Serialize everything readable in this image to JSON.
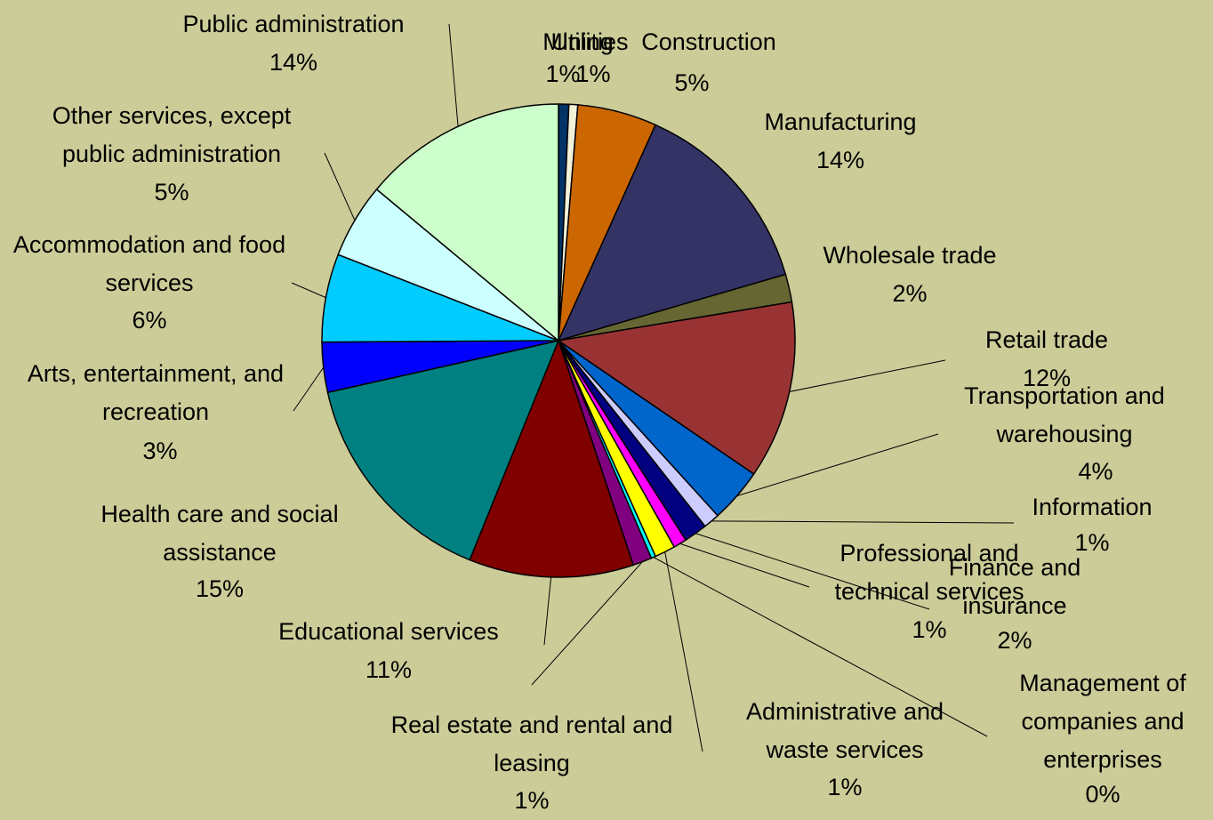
{
  "chart_data": {
    "type": "pie",
    "categories": [
      "Mining",
      "Utilities",
      "Construction",
      "Manufacturing",
      "Wholesale trade",
      "Retail trade",
      "Transportation and warehousing",
      "Information",
      "Finance and insurance",
      "Professional and technical services",
      "Administrative and waste services",
      "Management of companies and enterprises",
      "Real estate and rental and leasing",
      "Educational services",
      "Health care and social assistance",
      "Arts, entertainment, and recreation",
      "Accommodation and food services",
      "Other services, except public administration",
      "Public administration"
    ],
    "values": [
      0.7,
      0.6,
      5.4,
      13.7,
      1.9,
      12.1,
      3.7,
      1.1,
      1.6,
      0.9,
      1.4,
      0.3,
      1.3,
      11.2,
      15.3,
      3.4,
      6.0,
      5.1,
      13.9
    ],
    "value_labels": [
      "1%",
      "1%",
      "5%",
      "14%",
      "2%",
      "12%",
      "4%",
      "1%",
      "2%",
      "1%",
      "1%",
      "0%",
      "1%",
      "11%",
      "15%",
      "3%",
      "6%",
      "5%",
      "14%"
    ],
    "colors": [
      "#003366",
      "#f2f2d9",
      "#cc6600",
      "#333366",
      "#666633",
      "#993333",
      "#0066cc",
      "#ccccff",
      "#000080",
      "#ff00ff",
      "#ffff00",
      "#00ffff",
      "#800080",
      "#800000",
      "#008080",
      "#0000ff",
      "#00ccff",
      "#ccffff",
      "#ccffcc"
    ]
  }
}
